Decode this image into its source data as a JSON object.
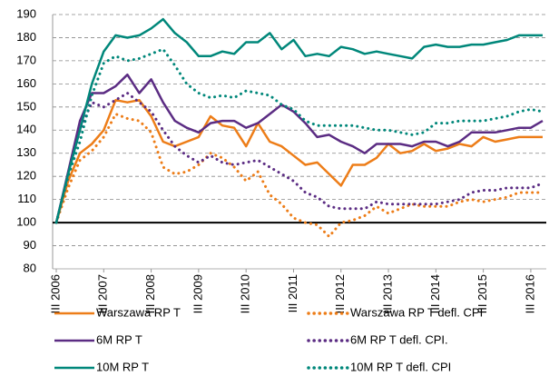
{
  "chart_data": {
    "type": "line",
    "categories": [
      "III 2006",
      null,
      null,
      null,
      "III 2007",
      null,
      null,
      null,
      "III 2008",
      null,
      null,
      null,
      "III 2009",
      null,
      null,
      null,
      "III 2010",
      null,
      null,
      null,
      "III 2011",
      null,
      null,
      null,
      "III 2012",
      null,
      null,
      null,
      "III 2013",
      null,
      null,
      null,
      "III 2014",
      null,
      null,
      null,
      "III 2015",
      null,
      null,
      null,
      "III 2016",
      null
    ],
    "ylim": [
      80,
      190
    ],
    "yticks": [
      80,
      90,
      100,
      110,
      120,
      130,
      140,
      150,
      160,
      170,
      180,
      190
    ],
    "grid": true,
    "reference_line": 100,
    "legend": "bottom",
    "series": [
      {
        "name": "Warszawa RP T",
        "color": "#ed7d18",
        "style": "solid",
        "values": [
          100,
          118,
          130,
          134,
          140,
          153,
          152,
          153,
          146,
          135,
          133,
          135,
          137,
          146,
          142,
          141,
          133,
          143,
          135,
          133,
          129,
          125,
          126,
          121,
          116,
          125,
          125,
          128,
          134,
          130,
          131,
          134,
          131,
          132,
          134,
          133,
          137,
          135,
          136,
          137,
          137,
          137
        ]
      },
      {
        "name": "Warszawa RP T defl. CPI",
        "color": "#ed7d18",
        "style": "dotted",
        "values": [
          100,
          115,
          127,
          131,
          137,
          147,
          145,
          144,
          139,
          124,
          121,
          122,
          125,
          130,
          128,
          124,
          118,
          122,
          112,
          108,
          102,
          100,
          99,
          94,
          100,
          101,
          103,
          107,
          104,
          106,
          108,
          107,
          107,
          107,
          109,
          110,
          109,
          110,
          111,
          113,
          113,
          113
        ]
      },
      {
        "name": "6M RP T",
        "color": "#5b2c83",
        "style": "solid",
        "values": [
          100,
          122,
          144,
          156,
          156,
          159,
          164,
          156,
          162,
          152,
          144,
          141,
          139,
          143,
          144,
          144,
          141,
          143,
          147,
          151,
          148,
          143,
          137,
          138,
          135,
          133,
          130,
          134,
          134,
          134,
          133,
          135,
          135,
          133,
          135,
          139,
          139,
          139,
          140,
          141,
          141,
          144
        ]
      },
      {
        "name": "6M RP T defl. CPI.",
        "color": "#5b2c83",
        "style": "dotted",
        "values": [
          100,
          120,
          140,
          152,
          150,
          153,
          156,
          152,
          148,
          140,
          133,
          129,
          126,
          129,
          126,
          125,
          126,
          127,
          124,
          121,
          118,
          113,
          111,
          107,
          106,
          106,
          106,
          109,
          108,
          108,
          108,
          108,
          108,
          109,
          110,
          113,
          114,
          114,
          115,
          115,
          115,
          117
        ]
      },
      {
        "name": "10M RP T",
        "color": "#00877a",
        "style": "solid",
        "values": [
          100,
          121,
          140,
          160,
          174,
          181,
          180,
          181,
          184,
          188,
          182,
          178,
          172,
          172,
          174,
          173,
          178,
          178,
          182,
          175,
          179,
          172,
          173,
          172,
          176,
          175,
          173,
          174,
          173,
          172,
          171,
          176,
          177,
          176,
          176,
          177,
          177,
          178,
          179,
          181,
          181,
          181
        ]
      },
      {
        "name": "10M RP T defl. CPI",
        "color": "#00877a",
        "style": "dotted",
        "values": [
          100,
          120,
          135,
          155,
          169,
          172,
          170,
          171,
          173,
          175,
          168,
          160,
          156,
          154,
          155,
          154,
          157,
          156,
          155,
          151,
          149,
          144,
          142,
          142,
          142,
          142,
          141,
          140,
          140,
          139,
          138,
          139,
          143,
          143,
          144,
          144,
          144,
          145,
          146,
          148,
          149,
          148
        ]
      }
    ]
  }
}
